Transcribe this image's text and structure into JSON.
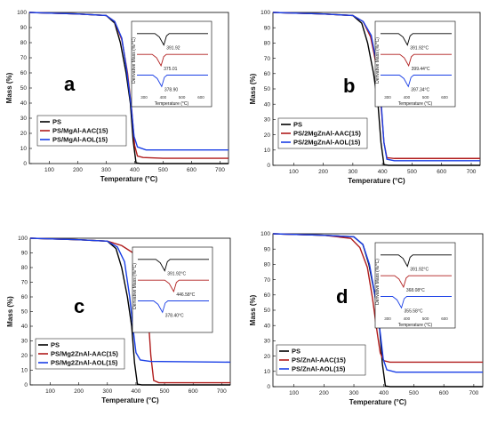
{
  "colors": {
    "PS": "#000000",
    "AAC": "#b01c1c",
    "AOL": "#1a3fe6"
  },
  "chart_data": [
    {
      "type": "line",
      "letter": "a",
      "xlabel": "Temperature (°C)",
      "ylabel": "Mass (%)",
      "xlim": [
        30,
        730
      ],
      "ylim": [
        0,
        100
      ],
      "xticks": [
        100,
        200,
        300,
        400,
        500,
        600,
        700
      ],
      "yticks": [
        0,
        10,
        20,
        30,
        40,
        50,
        60,
        70,
        80,
        90,
        100
      ],
      "series": [
        {
          "name": "PS",
          "color_key": "PS",
          "x": [
            30,
            200,
            300,
            330,
            350,
            370,
            385,
            395,
            405,
            420,
            730
          ],
          "y": [
            100,
            99,
            98,
            93,
            80,
            60,
            40,
            15,
            0.5,
            0,
            0
          ]
        },
        {
          "name": "PS/MgAl-AAC(15)",
          "color_key": "AAC",
          "x": [
            30,
            200,
            300,
            330,
            355,
            375,
            390,
            400,
            410,
            430,
            500,
            730
          ],
          "y": [
            100,
            99,
            98,
            94,
            82,
            60,
            35,
            12,
            5,
            4,
            3.5,
            3.5
          ]
        },
        {
          "name": "PS/MgAl-AOL(15)",
          "color_key": "AOL",
          "x": [
            30,
            200,
            300,
            330,
            355,
            372,
            388,
            398,
            410,
            440,
            600,
            730
          ],
          "y": [
            100,
            99,
            98,
            94,
            83,
            62,
            38,
            18,
            11,
            9,
            9,
            9
          ]
        }
      ],
      "inset": {
        "xlabel": "Temperature (°C)",
        "ylabel": "Derivative Mass (%/°C)",
        "xticks": [
          "300",
          "400",
          "500",
          "600"
        ],
        "peaks": [
          {
            "series": "PS",
            "temp": 391.92,
            "label": "391.92"
          },
          {
            "series": "AAC",
            "temp": 375.01,
            "label": "375.01"
          },
          {
            "series": "AOL",
            "temp": 378.9,
            "label": "378.90"
          }
        ]
      }
    },
    {
      "type": "line",
      "letter": "b",
      "xlabel": "Temperature (°C)",
      "ylabel": "Mass (%)",
      "xlim": [
        30,
        730
      ],
      "ylim": [
        0,
        100
      ],
      "xticks": [
        100,
        200,
        300,
        400,
        500,
        600,
        700
      ],
      "yticks": [
        0,
        10,
        20,
        30,
        40,
        50,
        60,
        70,
        80,
        90,
        100
      ],
      "series": [
        {
          "name": "PS",
          "color_key": "PS",
          "x": [
            30,
            200,
            300,
            330,
            350,
            370,
            385,
            395,
            405,
            420,
            730
          ],
          "y": [
            100,
            99,
            98,
            93,
            80,
            60,
            40,
            15,
            0.5,
            0,
            0
          ]
        },
        {
          "name": "PS/2MgZnAl-AAC(15)",
          "color_key": "AAC",
          "x": [
            30,
            200,
            300,
            335,
            360,
            380,
            395,
            405,
            415,
            440,
            730
          ],
          "y": [
            100,
            99,
            98,
            94,
            84,
            65,
            40,
            15,
            5,
            4.5,
            4.5
          ]
        },
        {
          "name": "PS/2MgZnAl-AOL(15)",
          "color_key": "AOL",
          "x": [
            30,
            200,
            300,
            335,
            362,
            382,
            396,
            405,
            415,
            440,
            730
          ],
          "y": [
            100,
            99,
            98,
            94,
            85,
            65,
            40,
            15,
            4,
            3,
            3
          ]
        }
      ],
      "inset": {
        "xlabel": "Temperature (°C)",
        "ylabel": "Derivative Mass (%/°C)",
        "xticks": [
          "300",
          "400",
          "500",
          "600"
        ],
        "peaks": [
          {
            "series": "PS",
            "temp": 391.92,
            "label": "391.92°C"
          },
          {
            "series": "AAC",
            "temp": 399.44,
            "label": "399.44°C"
          },
          {
            "series": "AOL",
            "temp": 397.34,
            "label": "397.34°C"
          }
        ]
      }
    },
    {
      "type": "line",
      "letter": "c",
      "xlabel": "Temperature (°C)",
      "ylabel": "Mass (%)",
      "xlim": [
        30,
        730
      ],
      "ylim": [
        0,
        100
      ],
      "xticks": [
        100,
        200,
        300,
        400,
        500,
        600,
        700
      ],
      "yticks": [
        0,
        10,
        20,
        30,
        40,
        50,
        60,
        70,
        80,
        90,
        100
      ],
      "series": [
        {
          "name": "PS",
          "color_key": "PS",
          "x": [
            30,
            200,
            300,
            330,
            350,
            370,
            385,
            395,
            405,
            420,
            730
          ],
          "y": [
            100,
            99,
            98,
            93,
            80,
            60,
            40,
            15,
            0.5,
            0,
            0
          ]
        },
        {
          "name": "PS/Mg2ZnAl-AAC(15)",
          "color_key": "AAC",
          "x": [
            30,
            200,
            300,
            350,
            390,
            420,
            440,
            452,
            462,
            480,
            730
          ],
          "y": [
            100,
            99,
            98,
            95,
            90,
            80,
            55,
            20,
            3,
            1.5,
            1.5
          ]
        },
        {
          "name": "PS/Mg2ZnAl-AOL(15)",
          "color_key": "AOL",
          "x": [
            30,
            200,
            300,
            335,
            360,
            378,
            390,
            400,
            415,
            450,
            730
          ],
          "y": [
            100,
            99,
            98,
            94,
            84,
            60,
            38,
            22,
            17,
            16,
            15.5
          ]
        }
      ],
      "inset": {
        "xlabel": "",
        "ylabel": "Derivative Mass (%/°C)",
        "xticks": [],
        "peaks": [
          {
            "series": "PS",
            "temp": 391.92,
            "label": "391.92°C"
          },
          {
            "series": "AAC",
            "temp": 446.58,
            "label": "446.58°C"
          },
          {
            "series": "AOL",
            "temp": 378.4,
            "label": "378.40°C"
          }
        ]
      }
    },
    {
      "type": "line",
      "letter": "d",
      "xlabel": "Temperature (°C)",
      "ylabel": "Mass (%)",
      "xlim": [
        30,
        730
      ],
      "ylim": [
        0,
        100
      ],
      "xticks": [
        100,
        200,
        300,
        400,
        500,
        600,
        700
      ],
      "yticks": [
        0,
        10,
        20,
        30,
        40,
        50,
        60,
        70,
        80,
        90,
        100
      ],
      "series": [
        {
          "name": "PS",
          "color_key": "PS",
          "x": [
            30,
            200,
            300,
            330,
            350,
            370,
            385,
            395,
            405,
            420,
            730
          ],
          "y": [
            100,
            99,
            98,
            93,
            80,
            60,
            40,
            15,
            0.5,
            0,
            0
          ]
        },
        {
          "name": "PS/ZnAl-AAC(15)",
          "color_key": "AAC",
          "x": [
            30,
            200,
            290,
            320,
            345,
            362,
            378,
            388,
            400,
            420,
            730
          ],
          "y": [
            100,
            99,
            97,
            91,
            78,
            58,
            35,
            22,
            17,
            16,
            16
          ]
        },
        {
          "name": "PS/ZnAl-AOL(15)",
          "color_key": "AOL",
          "x": [
            30,
            200,
            300,
            330,
            352,
            372,
            388,
            398,
            410,
            440,
            730
          ],
          "y": [
            100,
            99,
            98,
            93,
            80,
            58,
            35,
            18,
            11,
            9.5,
            9.5
          ]
        }
      ],
      "inset": {
        "xlabel": "Temperature (°C)",
        "ylabel": "Derivative Mass (%/°C)",
        "xticks": [
          "300",
          "400",
          "500",
          "600"
        ],
        "peaks": [
          {
            "series": "PS",
            "temp": 391.92,
            "label": "391.92°C"
          },
          {
            "series": "AAC",
            "temp": 368.08,
            "label": "368.08°C"
          },
          {
            "series": "AOL",
            "temp": 355.58,
            "label": "355.58°C"
          }
        ]
      }
    }
  ]
}
